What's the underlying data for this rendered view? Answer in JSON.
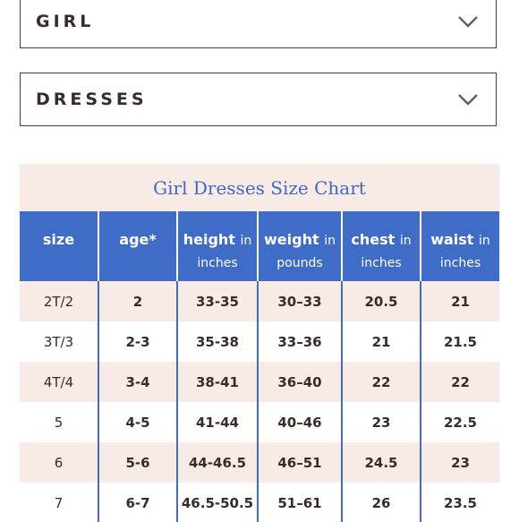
{
  "filters": {
    "category": {
      "label": "GIRL"
    },
    "type": {
      "label": "DRESSES"
    },
    "chevron_icon": "chevron-down-icon"
  },
  "colors": {
    "accent_blue": "#3f6cc7",
    "shade_pink": "#f8ebe6",
    "text_dark": "#3b2a2a"
  },
  "size_chart": {
    "title": "Girl Dresses Size Chart",
    "columns": [
      {
        "main": "size",
        "sub": ""
      },
      {
        "main": "age*",
        "sub": ""
      },
      {
        "main": "height",
        "sub": "in inches"
      },
      {
        "main": "weight",
        "sub": "in pounds"
      },
      {
        "main": "chest",
        "sub": "in inches"
      },
      {
        "main": "waist",
        "sub": "in inches"
      }
    ],
    "rows": [
      [
        "2T/2",
        "2",
        "33-35",
        "30–33",
        "20.5",
        "21"
      ],
      [
        "3T/3",
        "2-3",
        "35-38",
        "33–36",
        "21",
        "21.5"
      ],
      [
        "4T/4",
        "3-4",
        "38-41",
        "36–40",
        "22",
        "22"
      ],
      [
        "5",
        "4-5",
        "41-44",
        "40–46",
        "23",
        "22.5"
      ],
      [
        "6",
        "5-6",
        "44-46.5",
        "46–51",
        "24.5",
        "23"
      ],
      [
        "7",
        "6-7",
        "46.5-50.5",
        "51–61",
        "26",
        "23.5"
      ]
    ]
  }
}
